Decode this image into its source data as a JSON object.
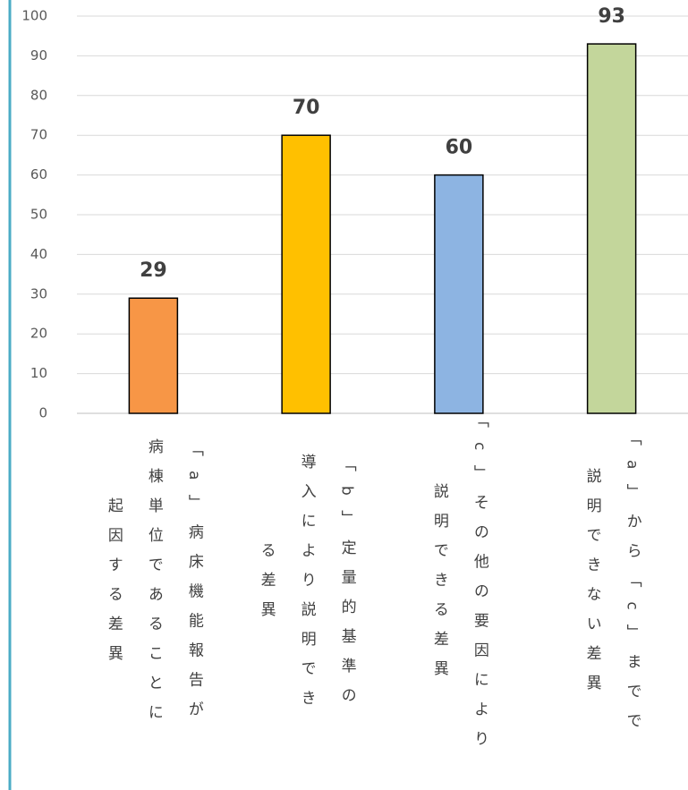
{
  "chart_data": {
    "type": "bar",
    "categories": [
      "「a」病床機能報告が病棟単位であることに起因する差異",
      "「b」定量的基準の導入により説明できる差異",
      "「c」その他の要因により説明できる差異",
      "「a」から「c」までで説明できない差異"
    ],
    "values": [
      29,
      70,
      60,
      93
    ],
    "colors": [
      "#f79646",
      "#ffc000",
      "#8db4e2",
      "#c3d69b"
    ],
    "ylim": [
      0,
      100
    ],
    "yticks": [
      0,
      10,
      20,
      30,
      40,
      50,
      60,
      70,
      80,
      90,
      100
    ],
    "grid": true
  }
}
